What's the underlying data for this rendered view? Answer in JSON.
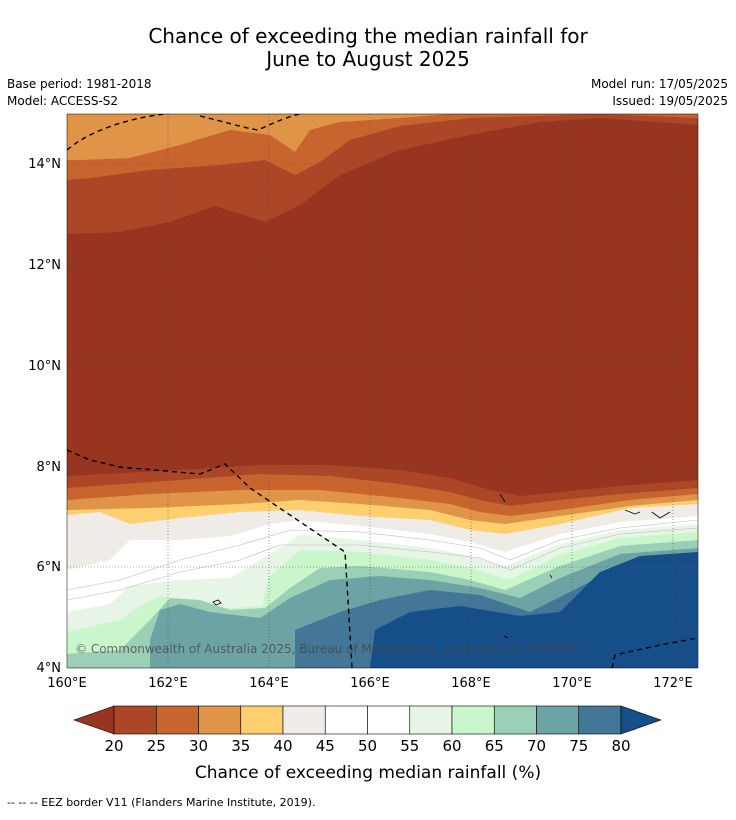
{
  "title_line1": "Chance of exceeding the median rainfall for",
  "title_line2": "June to August 2025",
  "base_period": "Base period: 1981-2018",
  "model": "Model: ACCESS-S2",
  "model_run": "Model run: 17/05/2025",
  "issued": "Issued: 19/05/2025",
  "copyright": "© Commonwealth of Australia 2025, Bureau of Meteorology, supported by COSPPac",
  "lat_labels": [
    "14°N",
    "12°N",
    "10°N",
    "8°N",
    "6°N",
    "4°N"
  ],
  "lon_labels": [
    "160°E",
    "162°E",
    "164°E",
    "166°E",
    "168°E",
    "170°E",
    "172°E"
  ],
  "colorbar": {
    "ticks": [
      "20",
      "25",
      "30",
      "35",
      "40",
      "45",
      "50",
      "55",
      "60",
      "65",
      "70",
      "75",
      "80"
    ],
    "label": "Chance of exceeding median rainfall (%)",
    "colors": [
      "#983520",
      "#ab4726",
      "#c8652f",
      "#df9447",
      "#fdcf6f",
      "#efebe6",
      "#ffffff",
      "#ffffff",
      "#e7f5e6",
      "#c9f6cb",
      "#9bcfb6",
      "#6ea3a5",
      "#437697",
      "#1c5b94",
      "#164e8a"
    ]
  },
  "legend_footer": "--  --  -- EEZ border V11 (Flanders Marine Institute, 2019)."
}
